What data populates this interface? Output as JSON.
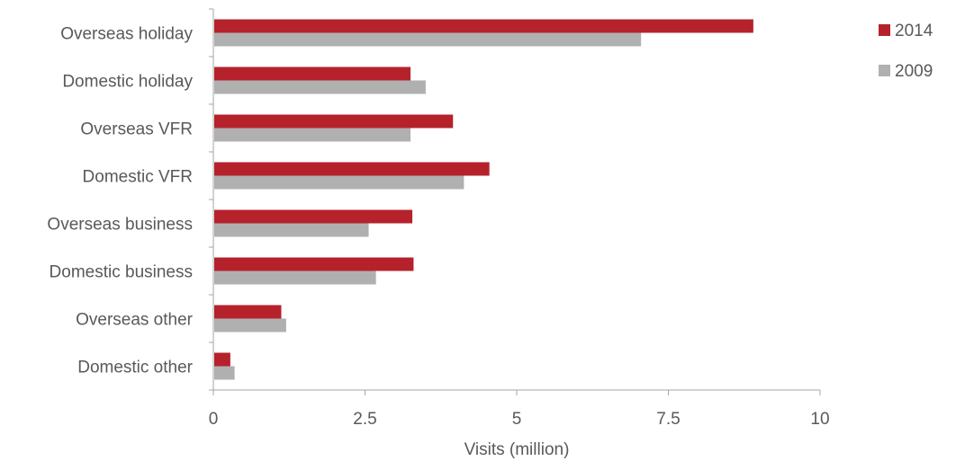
{
  "chart_data": {
    "type": "bar",
    "orientation": "horizontal",
    "categories": [
      "Overseas holiday",
      "Domestic holiday",
      "Overseas VFR",
      "Domestic VFR",
      "Overseas business",
      "Domestic business",
      "Overseas other",
      "Domestic other"
    ],
    "series": [
      {
        "name": "2014",
        "color": "#b5222b",
        "values": [
          8.9,
          3.25,
          3.95,
          4.55,
          3.28,
          3.3,
          1.12,
          0.28
        ]
      },
      {
        "name": "2009",
        "color": "#b0b0b0",
        "values": [
          7.05,
          3.5,
          3.25,
          4.13,
          2.56,
          2.68,
          1.2,
          0.35
        ]
      }
    ],
    "xlabel": "Visits (million)",
    "ylabel": "",
    "xlim": [
      0,
      10
    ],
    "xticks": [
      0,
      2.5,
      5,
      7.5,
      10
    ],
    "xtick_labels": [
      "0",
      "2.5",
      "5",
      "7.5",
      "10"
    ],
    "grid": false,
    "legend_position": "top-right"
  }
}
